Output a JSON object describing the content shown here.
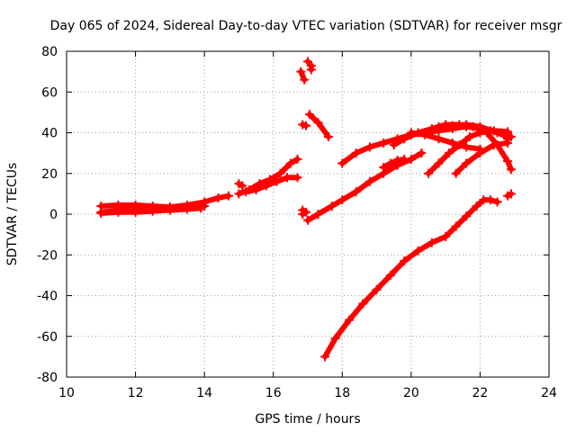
{
  "chart_data": {
    "type": "scatter",
    "title": "Day 065 of 2024, Sidereal Day-to-day VTEC variation (SDTVAR) for receiver msgr",
    "xlabel": "GPS time / hours",
    "ylabel": "SDTVAR / TECUs",
    "xlim": [
      10,
      24
    ],
    "ylim": [
      -80,
      80
    ],
    "xticks": [
      "10",
      "12",
      "14",
      "16",
      "18",
      "20",
      "22",
      "24"
    ],
    "yticks": [
      "-80",
      "-60",
      "-40",
      "-20",
      "0",
      "20",
      "40",
      "60",
      "80"
    ],
    "grid": true,
    "marker": "+",
    "color": "#ff0000",
    "series": [
      {
        "points": [
          [
            11.0,
            1
          ],
          [
            11.5,
            2
          ],
          [
            12.0,
            2.5
          ],
          [
            12.5,
            3
          ],
          [
            13.0,
            3.5
          ],
          [
            13.5,
            4.5
          ],
          [
            14.0,
            6
          ],
          [
            14.4,
            8
          ],
          [
            14.7,
            9
          ]
        ]
      },
      {
        "points": [
          [
            11.0,
            4
          ],
          [
            11.5,
            4.5
          ],
          [
            12.0,
            4.5
          ],
          [
            12.5,
            4
          ],
          [
            13.0,
            3.5
          ],
          [
            13.5,
            3
          ],
          [
            14.0,
            4
          ]
        ]
      },
      {
        "points": [
          [
            11.0,
            0.5
          ],
          [
            11.5,
            1
          ],
          [
            12.0,
            1
          ],
          [
            12.5,
            1.5
          ],
          [
            13.0,
            2
          ],
          [
            13.5,
            2.5
          ],
          [
            13.9,
            3
          ]
        ]
      },
      {
        "points": [
          [
            15.0,
            15
          ],
          [
            15.1,
            14
          ]
        ]
      },
      {
        "points": [
          [
            15.0,
            10
          ],
          [
            15.3,
            12
          ],
          [
            15.6,
            15
          ],
          [
            15.9,
            17
          ],
          [
            16.2,
            20
          ],
          [
            16.5,
            25
          ],
          [
            16.7,
            27
          ]
        ]
      },
      {
        "points": [
          [
            15.2,
            11
          ],
          [
            15.5,
            12
          ],
          [
            15.8,
            14
          ],
          [
            16.1,
            16
          ],
          [
            16.4,
            18
          ],
          [
            16.7,
            18
          ]
        ]
      },
      {
        "points": [
          [
            16.85,
            2
          ],
          [
            16.95,
            1
          ],
          [
            16.85,
            0
          ]
        ]
      },
      {
        "points": [
          [
            16.85,
            44
          ],
          [
            16.95,
            43.5
          ]
        ]
      },
      {
        "points": [
          [
            16.8,
            70
          ],
          [
            16.9,
            66
          ]
        ]
      },
      {
        "points": [
          [
            17.0,
            75
          ],
          [
            17.1,
            73
          ],
          [
            17.1,
            71
          ]
        ]
      },
      {
        "points": [
          [
            17.05,
            49
          ],
          [
            17.3,
            45
          ],
          [
            17.6,
            38
          ]
        ]
      },
      {
        "points": [
          [
            17.0,
            -3
          ],
          [
            17.3,
            0
          ],
          [
            17.7,
            4
          ],
          [
            18.0,
            7
          ],
          [
            18.4,
            11
          ],
          [
            18.8,
            16
          ],
          [
            19.2,
            20
          ],
          [
            19.6,
            24
          ],
          [
            20.0,
            27
          ],
          [
            20.3,
            30
          ]
        ]
      },
      {
        "points": [
          [
            18.0,
            25
          ],
          [
            18.4,
            30
          ],
          [
            18.8,
            33
          ],
          [
            19.2,
            35
          ],
          [
            19.6,
            37
          ],
          [
            20.0,
            39
          ],
          [
            20.4,
            40
          ],
          [
            20.8,
            41
          ],
          [
            21.2,
            42
          ],
          [
            21.6,
            43
          ],
          [
            22.0,
            42
          ],
          [
            22.4,
            41
          ],
          [
            22.8,
            40.5
          ]
        ]
      },
      {
        "points": [
          [
            19.2,
            23
          ],
          [
            19.4,
            25
          ],
          [
            19.6,
            26.5
          ],
          [
            19.8,
            27
          ]
        ]
      },
      {
        "points": [
          [
            19.5,
            34
          ],
          [
            19.8,
            37
          ],
          [
            20.2,
            40
          ],
          [
            20.6,
            42
          ],
          [
            21.0,
            44
          ],
          [
            21.4,
            44
          ],
          [
            21.8,
            43
          ],
          [
            22.2,
            40
          ],
          [
            22.5,
            34
          ],
          [
            22.8,
            26
          ],
          [
            22.9,
            22
          ]
        ]
      },
      {
        "points": [
          [
            20.0,
            40
          ],
          [
            20.4,
            39
          ],
          [
            20.8,
            37
          ],
          [
            21.2,
            35
          ],
          [
            21.6,
            33
          ],
          [
            22.0,
            32
          ]
        ]
      },
      {
        "points": [
          [
            20.5,
            20
          ],
          [
            20.8,
            25
          ],
          [
            21.1,
            30
          ],
          [
            21.4,
            34
          ],
          [
            21.7,
            38
          ],
          [
            22.0,
            40
          ],
          [
            22.3,
            41
          ],
          [
            22.6,
            40
          ],
          [
            22.8,
            37
          ]
        ]
      },
      {
        "points": [
          [
            21.3,
            20
          ],
          [
            21.6,
            25
          ],
          [
            22.0,
            30
          ],
          [
            22.4,
            34
          ],
          [
            22.8,
            35
          ]
        ]
      },
      {
        "points": [
          [
            20.8,
            43
          ],
          [
            21.2,
            43.5
          ],
          [
            21.6,
            44
          ],
          [
            22.0,
            43
          ],
          [
            22.5,
            40
          ],
          [
            22.9,
            38
          ]
        ]
      },
      {
        "points": [
          [
            17.5,
            -70
          ],
          [
            17.8,
            -61
          ],
          [
            18.2,
            -52
          ],
          [
            18.6,
            -44
          ],
          [
            19.0,
            -37
          ],
          [
            19.4,
            -30
          ],
          [
            19.8,
            -23
          ],
          [
            20.2,
            -18
          ],
          [
            20.6,
            -14
          ],
          [
            21.0,
            -11
          ],
          [
            21.3,
            -6
          ],
          [
            21.6,
            -1
          ],
          [
            21.9,
            4
          ],
          [
            22.1,
            7
          ],
          [
            22.3,
            7
          ],
          [
            22.5,
            6
          ]
        ]
      },
      {
        "points": [
          [
            22.8,
            9
          ],
          [
            22.9,
            10
          ]
        ]
      }
    ]
  }
}
